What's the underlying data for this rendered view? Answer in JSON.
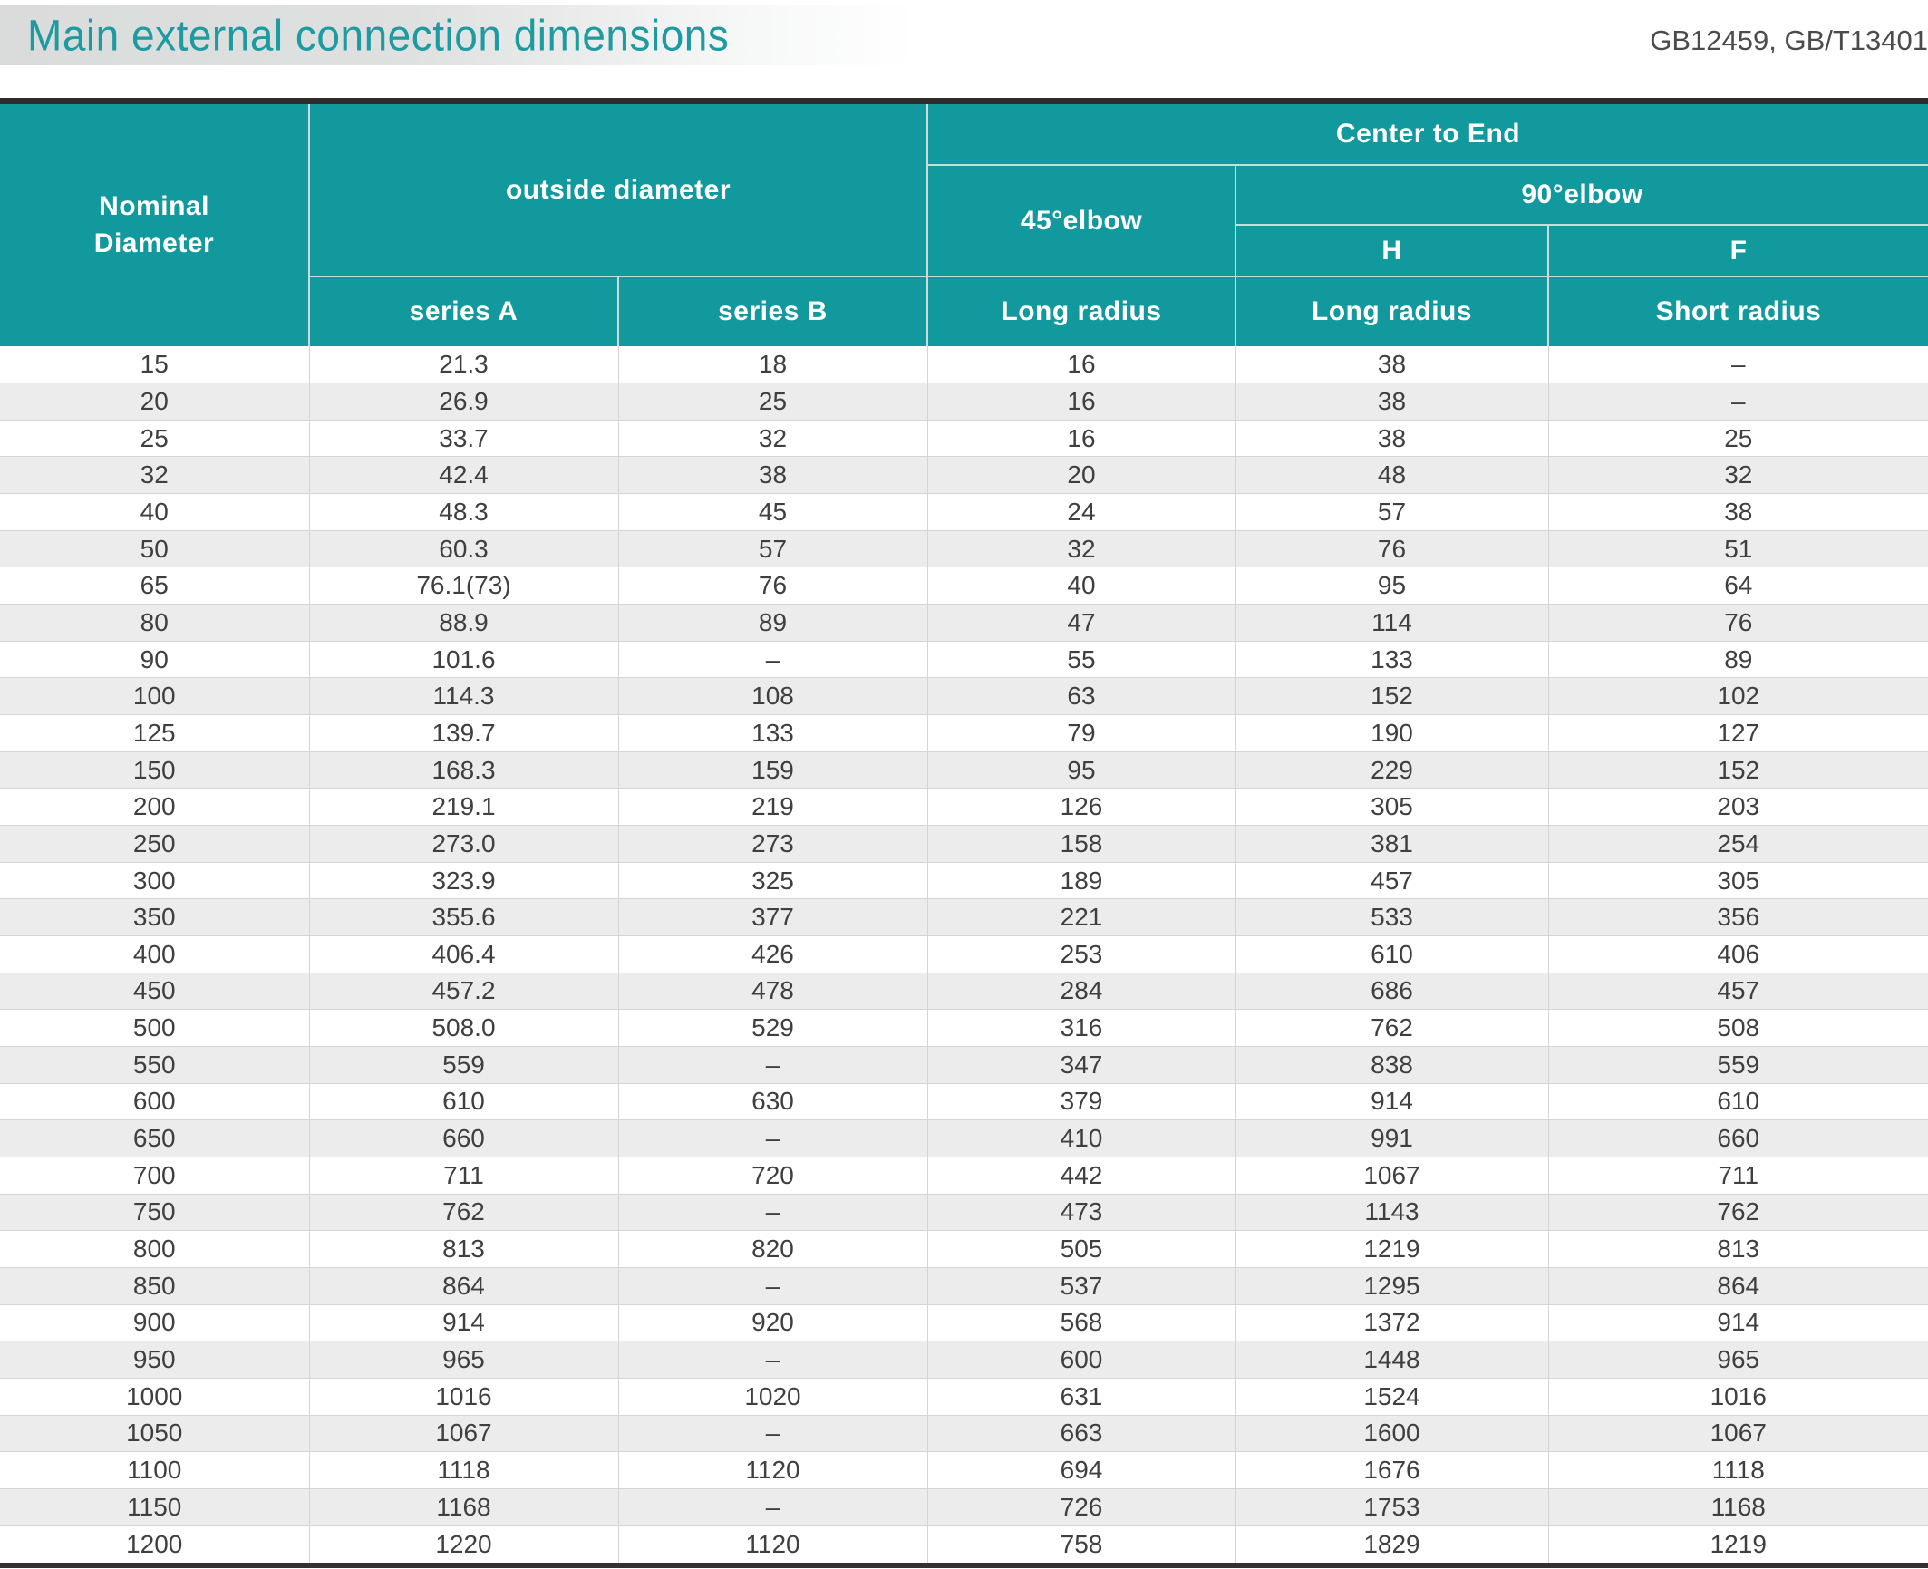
{
  "header": {
    "title": "Main external connection dimensions",
    "standards": "GB12459, GB/T13401"
  },
  "colors": {
    "accent_teal": "#12999e",
    "title_teal": "#1d9ba1",
    "bar_dark": "#2e2b2a",
    "row_alt_gray": "#ececec",
    "grid_line": "#d5d5d5"
  },
  "table": {
    "headers": {
      "nominal_diameter": "Nominal\nDiameter",
      "outside_diameter": "outside diameter",
      "center_to_end": "Center to End",
      "elbow_45": "45°elbow",
      "elbow_90": "90°elbow",
      "h": "H",
      "f": "F",
      "series_a": "series A",
      "series_b": "series B",
      "long_radius_45": "Long radius",
      "long_radius_90": "Long radius",
      "short_radius_90": "Short radius"
    },
    "rows": [
      [
        "15",
        "21.3",
        "18",
        "16",
        "38",
        "–"
      ],
      [
        "20",
        "26.9",
        "25",
        "16",
        "38",
        "–"
      ],
      [
        "25",
        "33.7",
        "32",
        "16",
        "38",
        "25"
      ],
      [
        "32",
        "42.4",
        "38",
        "20",
        "48",
        "32"
      ],
      [
        "40",
        "48.3",
        "45",
        "24",
        "57",
        "38"
      ],
      [
        "50",
        "60.3",
        "57",
        "32",
        "76",
        "51"
      ],
      [
        "65",
        "76.1(73)",
        "76",
        "40",
        "95",
        "64"
      ],
      [
        "80",
        "88.9",
        "89",
        "47",
        "114",
        "76"
      ],
      [
        "90",
        "101.6",
        "–",
        "55",
        "133",
        "89"
      ],
      [
        "100",
        "114.3",
        "108",
        "63",
        "152",
        "102"
      ],
      [
        "125",
        "139.7",
        "133",
        "79",
        "190",
        "127"
      ],
      [
        "150",
        "168.3",
        "159",
        "95",
        "229",
        "152"
      ],
      [
        "200",
        "219.1",
        "219",
        "126",
        "305",
        "203"
      ],
      [
        "250",
        "273.0",
        "273",
        "158",
        "381",
        "254"
      ],
      [
        "300",
        "323.9",
        "325",
        "189",
        "457",
        "305"
      ],
      [
        "350",
        "355.6",
        "377",
        "221",
        "533",
        "356"
      ],
      [
        "400",
        "406.4",
        "426",
        "253",
        "610",
        "406"
      ],
      [
        "450",
        "457.2",
        "478",
        "284",
        "686",
        "457"
      ],
      [
        "500",
        "508.0",
        "529",
        "316",
        "762",
        "508"
      ],
      [
        "550",
        "559",
        "–",
        "347",
        "838",
        "559"
      ],
      [
        "600",
        "610",
        "630",
        "379",
        "914",
        "610"
      ],
      [
        "650",
        "660",
        "–",
        "410",
        "991",
        "660"
      ],
      [
        "700",
        "711",
        "720",
        "442",
        "1067",
        "711"
      ],
      [
        "750",
        "762",
        "–",
        "473",
        "1143",
        "762"
      ],
      [
        "800",
        "813",
        "820",
        "505",
        "1219",
        "813"
      ],
      [
        "850",
        "864",
        "–",
        "537",
        "1295",
        "864"
      ],
      [
        "900",
        "914",
        "920",
        "568",
        "1372",
        "914"
      ],
      [
        "950",
        "965",
        "–",
        "600",
        "1448",
        "965"
      ],
      [
        "1000",
        "1016",
        "1020",
        "631",
        "1524",
        "1016"
      ],
      [
        "1050",
        "1067",
        "–",
        "663",
        "1600",
        "1067"
      ],
      [
        "1100",
        "1118",
        "1120",
        "694",
        "1676",
        "1118"
      ],
      [
        "1150",
        "1168",
        "–",
        "726",
        "1753",
        "1168"
      ],
      [
        "1200",
        "1220",
        "1120",
        "758",
        "1829",
        "1219"
      ]
    ]
  }
}
